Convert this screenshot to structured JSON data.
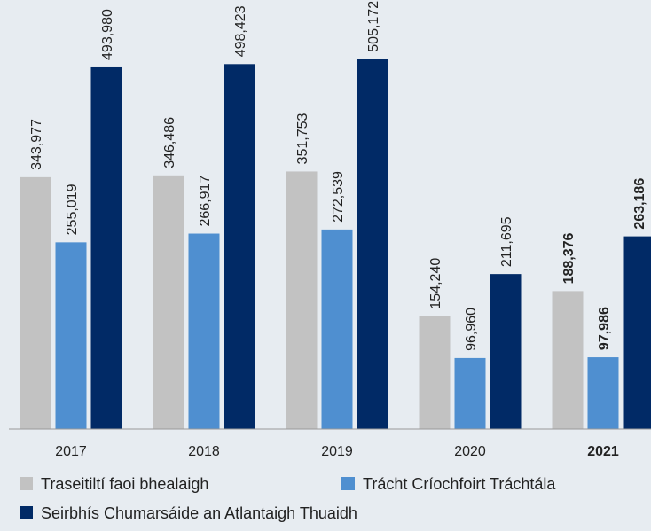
{
  "chart_data": {
    "type": "bar",
    "categories": [
      "2017",
      "2018",
      "2019",
      "2020",
      "2021"
    ],
    "series": [
      {
        "name": "Traseitiltí faoi bhealaigh",
        "color": "#c2c2c2",
        "values": [
          343977,
          346486,
          351753,
          154240,
          188376
        ],
        "value_labels": [
          "343,977",
          "346,486",
          "351,753",
          "154,240",
          "188,376"
        ]
      },
      {
        "name": "Trácht Críochfoirt Tráchtála",
        "color": "#4f8fd0",
        "values": [
          255019,
          266917,
          272539,
          96960,
          97986
        ],
        "value_labels": [
          "255,019",
          "266,917",
          "272,539",
          "96,960",
          "97,986"
        ]
      },
      {
        "name": "Seirbhís Chumarsáide an Atlantaigh Thuaidh",
        "color": "#012a66",
        "values": [
          493980,
          498423,
          505172,
          211695,
          263186
        ],
        "value_labels": [
          "493,980",
          "498,423",
          "505,172",
          "211,695",
          "263,186"
        ]
      }
    ]
  }
}
